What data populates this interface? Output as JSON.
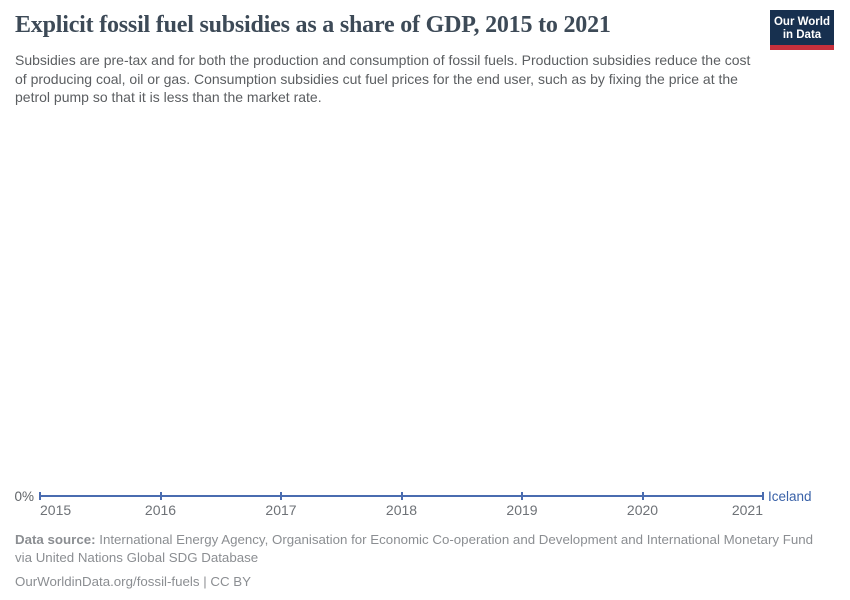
{
  "header": {
    "title": "Explicit fossil fuel subsidies as a share of GDP, 2015 to 2021",
    "subtitle": "Subsidies are pre-tax and for both the production and consumption of fossil fuels. Production subsidies reduce the cost of producing coal, oil or gas. Consumption subsidies cut fuel prices for the end user, such as by fixing the price at the petrol pump so that it is less than the market rate.",
    "logo": {
      "line1": "Our World",
      "line2": "in Data"
    }
  },
  "chart_data": {
    "type": "line",
    "title": "Explicit fossil fuel subsidies as a share of GDP, 2015 to 2021",
    "x": [
      2015,
      2016,
      2017,
      2018,
      2019,
      2020,
      2021
    ],
    "series": [
      {
        "name": "Iceland",
        "values": [
          0,
          0,
          0,
          0,
          0,
          0,
          0
        ]
      }
    ],
    "xlabel": "",
    "ylabel": "",
    "y_tick_labels": [
      "0%"
    ],
    "ylim": [
      0,
      0
    ],
    "grid": false,
    "legend_position": "right-of-line-end",
    "marker_style": "small vertical tick at each year"
  },
  "axis": {
    "y_zero_label": "0%",
    "x_ticks": [
      "2015",
      "2016",
      "2017",
      "2018",
      "2019",
      "2020",
      "2021"
    ],
    "series_label": "Iceland"
  },
  "footer": {
    "source_label": "Data source:",
    "source_text": " International Energy Agency, Organisation for Economic Co-operation and Development and International Monetary Fund via United Nations Global SDG Database",
    "license": "OurWorldinData.org/fossil-fuels | CC BY"
  },
  "colors": {
    "series_line": "#4A6CB0",
    "series_label": "#3A62A8",
    "title_text": "#3d4a57",
    "subtitle_text": "#5b5e61",
    "axis_text": "#6e7277",
    "footer_text": "#8b8e92",
    "logo_background": "#17304F",
    "logo_bar": "#C7303C",
    "background": "#ffffff"
  }
}
